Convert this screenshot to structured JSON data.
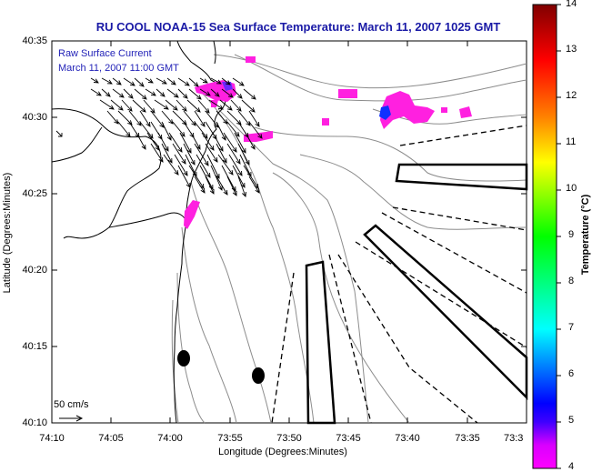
{
  "title": "RU COOL  NOAA-15  Sea Surface Temperature:  March 11, 2007 1025 GMT",
  "legend": {
    "line1": "Raw Surface Current",
    "line2": "March 11, 2007 11:00 GMT"
  },
  "axes": {
    "xlabel": "Longitude (Degrees:Minutes)",
    "ylabel": "Latitude (Degrees:Minutes)",
    "xticks": [
      "74:10",
      "74:05",
      "74:00",
      "73:55",
      "73:50",
      "73:45",
      "73:40",
      "73:35",
      "73:3"
    ],
    "yticks": [
      "40:35",
      "40:30",
      "40:25",
      "40:20",
      "40:15",
      "40:10"
    ]
  },
  "colorbar": {
    "title": "Temperature (°C)",
    "ticks": [
      "14",
      "13",
      "12",
      "11",
      "10",
      "9",
      "8",
      "7",
      "6",
      "5",
      "4"
    ],
    "range": [
      4,
      14
    ],
    "colors": [
      "#ff00ff",
      "#3f00ff",
      "#0000ff",
      "#007fff",
      "#00ffff",
      "#00ff7f",
      "#00ff00",
      "#7fff00",
      "#ffff00",
      "#ff7f00",
      "#ff0000",
      "#7f0000"
    ]
  },
  "scale": {
    "label": "50 cm/s"
  },
  "sst_color": "#ff20e0",
  "coast_color": "#000000",
  "bathy_color": "#8c8c8c"
}
